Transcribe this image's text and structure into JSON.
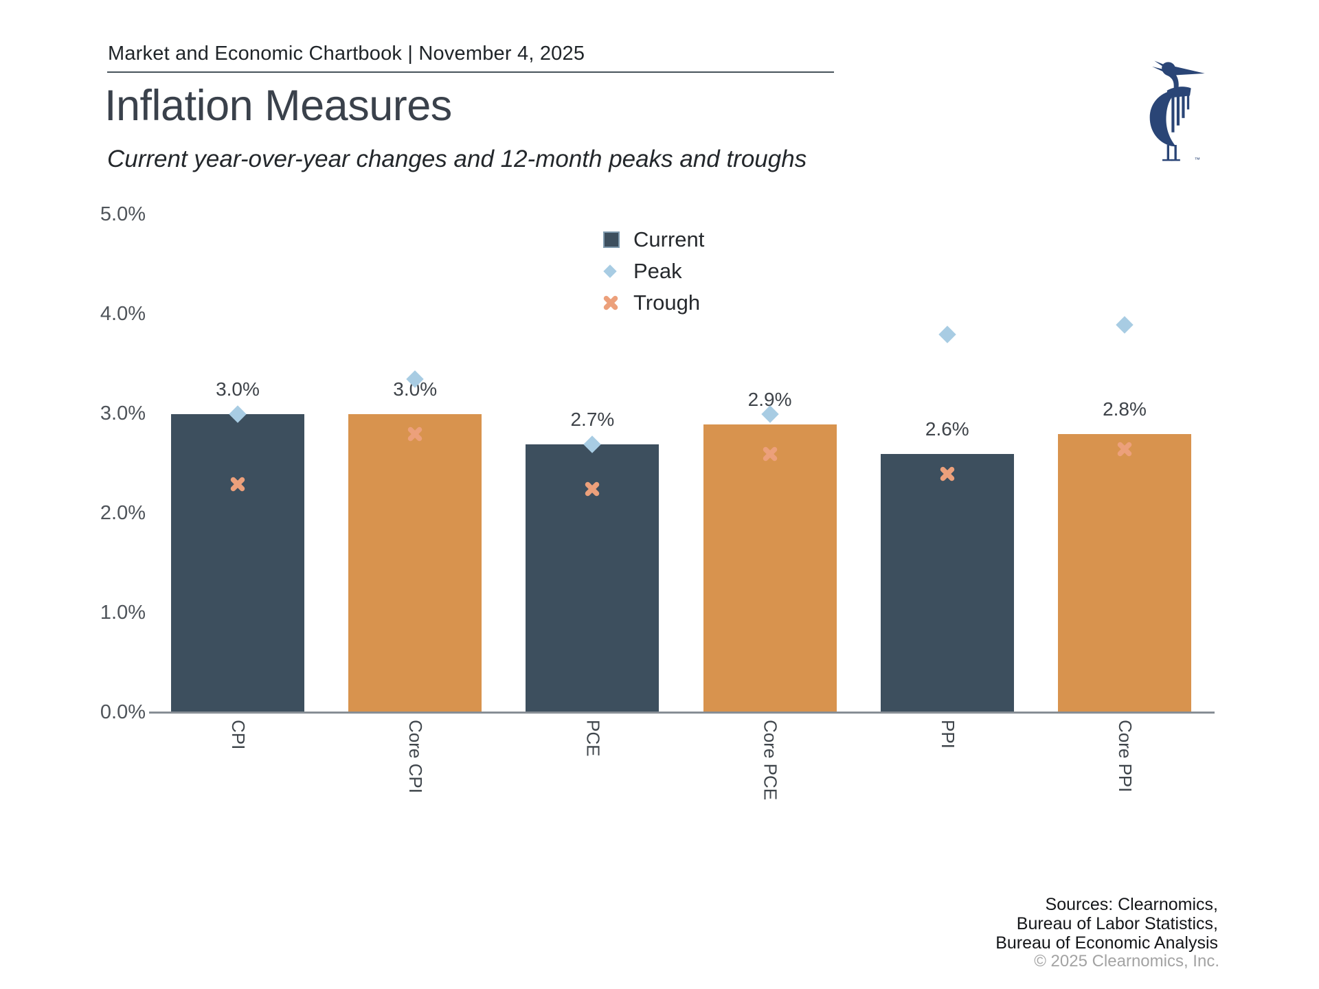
{
  "header": {
    "chartbook_title": "Market and Economic Chartbook | November 4, 2025",
    "page_title": "Inflation Measures",
    "subtitle": "Current year-over-year changes and 12-month peaks and troughs",
    "logo_trademark": "™"
  },
  "legend": {
    "items": [
      {
        "label": "Current",
        "marker": "square"
      },
      {
        "label": "Peak",
        "marker": "diamond"
      },
      {
        "label": "Trough",
        "marker": "x"
      }
    ]
  },
  "chart_data": {
    "type": "bar",
    "title": "Inflation Measures",
    "categories": [
      "CPI",
      "Core CPI",
      "PCE",
      "Core PCE",
      "PPI",
      "Core PPI"
    ],
    "series": [
      {
        "name": "Current",
        "type": "bar",
        "values": [
          3.0,
          3.0,
          2.7,
          2.9,
          2.6,
          2.8
        ],
        "labels": [
          "3.0%",
          "3.0%",
          "2.7%",
          "2.9%",
          "2.6%",
          "2.8%"
        ],
        "bar_colors": [
          "#3d4f5e",
          "#d8934e",
          "#3d4f5e",
          "#d8934e",
          "#3d4f5e",
          "#d8934e"
        ]
      },
      {
        "name": "Peak",
        "type": "scatter",
        "marker": "diamond",
        "color": "#a8cce3",
        "values": [
          3.0,
          3.35,
          2.7,
          3.0,
          3.8,
          3.9
        ]
      },
      {
        "name": "Trough",
        "type": "scatter",
        "marker": "x",
        "color": "#eca07b",
        "values": [
          2.3,
          2.8,
          2.25,
          2.6,
          2.4,
          2.65
        ]
      }
    ],
    "xlabel": "",
    "ylabel": "",
    "ylim": [
      0,
      5
    ],
    "yticks": [
      "0.0%",
      "1.0%",
      "2.0%",
      "3.0%",
      "4.0%",
      "5.0%"
    ],
    "grid": false,
    "legend_position": "upper center"
  },
  "colors": {
    "bar_dark": "#3d4f5e",
    "bar_orange": "#d8934e",
    "peak": "#a8cce3",
    "trough": "#eca07b",
    "legend_square_border": "#7f9aae",
    "axis": "#878e95",
    "logo_navy": "#2a4576"
  },
  "footer": {
    "sources_lines": [
      "Sources: Clearnomics,",
      "Bureau of Labor Statistics,",
      "Bureau of Economic Analysis"
    ],
    "copyright": "© 2025 Clearnomics, Inc."
  }
}
